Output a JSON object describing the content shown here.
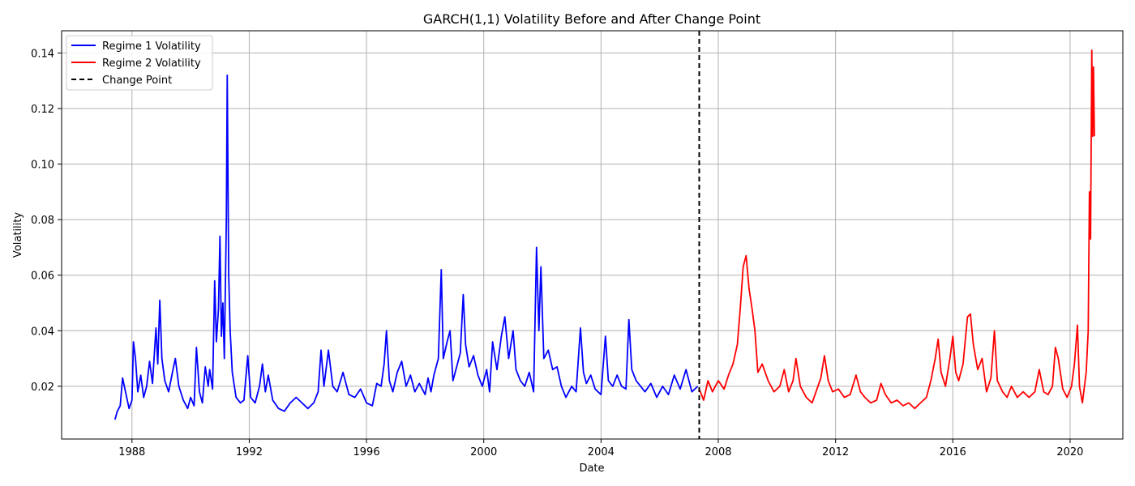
{
  "chart_data": {
    "type": "line",
    "title": "GARCH(1,1) Volatility Before and After Change Point",
    "xlabel": "Date",
    "ylabel": "Volatility",
    "x_ticks": [
      "1988",
      "1992",
      "1996",
      "2000",
      "2004",
      "2008",
      "2012",
      "2016",
      "2020"
    ],
    "y_ticks": [
      "0.02",
      "0.04",
      "0.06",
      "0.08",
      "0.10",
      "0.12",
      "0.14"
    ],
    "xlim": [
      1985.6,
      2021.8
    ],
    "ylim": [
      0.001,
      0.148
    ],
    "grid": true,
    "legend_position": "top-left",
    "change_point": {
      "name": "Change Point",
      "x": 2007.35,
      "color": "#000000",
      "style": "dashed"
    },
    "series": [
      {
        "name": "Regime 1 Volatility",
        "color": "#0000ff",
        "points": [
          [
            1987.42,
            0.008
          ],
          [
            1987.5,
            0.011
          ],
          [
            1987.6,
            0.013
          ],
          [
            1987.68,
            0.023
          ],
          [
            1987.78,
            0.018
          ],
          [
            1987.9,
            0.012
          ],
          [
            1988.0,
            0.015
          ],
          [
            1988.05,
            0.036
          ],
          [
            1988.12,
            0.03
          ],
          [
            1988.2,
            0.018
          ],
          [
            1988.3,
            0.024
          ],
          [
            1988.4,
            0.016
          ],
          [
            1988.5,
            0.02
          ],
          [
            1988.6,
            0.029
          ],
          [
            1988.7,
            0.021
          ],
          [
            1988.82,
            0.041
          ],
          [
            1988.88,
            0.028
          ],
          [
            1988.95,
            0.051
          ],
          [
            1989.02,
            0.03
          ],
          [
            1989.12,
            0.022
          ],
          [
            1989.25,
            0.018
          ],
          [
            1989.4,
            0.026
          ],
          [
            1989.48,
            0.03
          ],
          [
            1989.6,
            0.02
          ],
          [
            1989.75,
            0.015
          ],
          [
            1989.9,
            0.012
          ],
          [
            1990.0,
            0.016
          ],
          [
            1990.12,
            0.013
          ],
          [
            1990.2,
            0.034
          ],
          [
            1990.3,
            0.018
          ],
          [
            1990.4,
            0.014
          ],
          [
            1990.5,
            0.027
          ],
          [
            1990.6,
            0.02
          ],
          [
            1990.65,
            0.026
          ],
          [
            1990.75,
            0.019
          ],
          [
            1990.82,
            0.058
          ],
          [
            1990.88,
            0.036
          ],
          [
            1990.95,
            0.048
          ],
          [
            1991.0,
            0.074
          ],
          [
            1991.05,
            0.038
          ],
          [
            1991.1,
            0.05
          ],
          [
            1991.15,
            0.03
          ],
          [
            1991.22,
            0.08
          ],
          [
            1991.25,
            0.132
          ],
          [
            1991.3,
            0.06
          ],
          [
            1991.35,
            0.04
          ],
          [
            1991.42,
            0.025
          ],
          [
            1991.55,
            0.016
          ],
          [
            1991.7,
            0.014
          ],
          [
            1991.82,
            0.015
          ],
          [
            1991.95,
            0.031
          ],
          [
            1992.05,
            0.016
          ],
          [
            1992.2,
            0.014
          ],
          [
            1992.35,
            0.02
          ],
          [
            1992.45,
            0.028
          ],
          [
            1992.55,
            0.018
          ],
          [
            1992.65,
            0.024
          ],
          [
            1992.8,
            0.015
          ],
          [
            1993.0,
            0.012
          ],
          [
            1993.2,
            0.011
          ],
          [
            1993.4,
            0.014
          ],
          [
            1993.6,
            0.016
          ],
          [
            1993.8,
            0.014
          ],
          [
            1994.0,
            0.012
          ],
          [
            1994.2,
            0.014
          ],
          [
            1994.35,
            0.018
          ],
          [
            1994.45,
            0.033
          ],
          [
            1994.55,
            0.02
          ],
          [
            1994.7,
            0.033
          ],
          [
            1994.85,
            0.02
          ],
          [
            1995.0,
            0.018
          ],
          [
            1995.2,
            0.025
          ],
          [
            1995.4,
            0.017
          ],
          [
            1995.6,
            0.016
          ],
          [
            1995.8,
            0.019
          ],
          [
            1996.0,
            0.014
          ],
          [
            1996.2,
            0.013
          ],
          [
            1996.35,
            0.021
          ],
          [
            1996.5,
            0.02
          ],
          [
            1996.6,
            0.028
          ],
          [
            1996.68,
            0.04
          ],
          [
            1996.78,
            0.022
          ],
          [
            1996.9,
            0.018
          ],
          [
            1997.05,
            0.025
          ],
          [
            1997.2,
            0.029
          ],
          [
            1997.35,
            0.02
          ],
          [
            1997.5,
            0.024
          ],
          [
            1997.65,
            0.018
          ],
          [
            1997.8,
            0.021
          ],
          [
            1998.0,
            0.017
          ],
          [
            1998.1,
            0.023
          ],
          [
            1998.2,
            0.018
          ],
          [
            1998.3,
            0.024
          ],
          [
            1998.45,
            0.03
          ],
          [
            1998.55,
            0.062
          ],
          [
            1998.62,
            0.03
          ],
          [
            1998.75,
            0.036
          ],
          [
            1998.85,
            0.04
          ],
          [
            1998.95,
            0.022
          ],
          [
            1999.1,
            0.028
          ],
          [
            1999.2,
            0.032
          ],
          [
            1999.3,
            0.053
          ],
          [
            1999.38,
            0.035
          ],
          [
            1999.5,
            0.027
          ],
          [
            1999.65,
            0.031
          ],
          [
            1999.8,
            0.024
          ],
          [
            1999.95,
            0.02
          ],
          [
            2000.1,
            0.026
          ],
          [
            2000.2,
            0.018
          ],
          [
            2000.3,
            0.036
          ],
          [
            2000.45,
            0.026
          ],
          [
            2000.6,
            0.038
          ],
          [
            2000.72,
            0.045
          ],
          [
            2000.85,
            0.03
          ],
          [
            2001.0,
            0.04
          ],
          [
            2001.1,
            0.026
          ],
          [
            2001.25,
            0.022
          ],
          [
            2001.4,
            0.02
          ],
          [
            2001.55,
            0.025
          ],
          [
            2001.7,
            0.018
          ],
          [
            2001.8,
            0.07
          ],
          [
            2001.88,
            0.04
          ],
          [
            2001.95,
            0.063
          ],
          [
            2002.05,
            0.03
          ],
          [
            2002.2,
            0.033
          ],
          [
            2002.35,
            0.026
          ],
          [
            2002.5,
            0.027
          ],
          [
            2002.65,
            0.02
          ],
          [
            2002.8,
            0.016
          ],
          [
            2003.0,
            0.02
          ],
          [
            2003.15,
            0.018
          ],
          [
            2003.3,
            0.041
          ],
          [
            2003.4,
            0.025
          ],
          [
            2003.5,
            0.021
          ],
          [
            2003.65,
            0.024
          ],
          [
            2003.8,
            0.019
          ],
          [
            2004.0,
            0.017
          ],
          [
            2004.15,
            0.038
          ],
          [
            2004.25,
            0.022
          ],
          [
            2004.4,
            0.02
          ],
          [
            2004.55,
            0.024
          ],
          [
            2004.7,
            0.02
          ],
          [
            2004.85,
            0.019
          ],
          [
            2004.95,
            0.044
          ],
          [
            2005.05,
            0.026
          ],
          [
            2005.2,
            0.022
          ],
          [
            2005.35,
            0.02
          ],
          [
            2005.5,
            0.018
          ],
          [
            2005.7,
            0.021
          ],
          [
            2005.9,
            0.016
          ],
          [
            2006.1,
            0.02
          ],
          [
            2006.3,
            0.017
          ],
          [
            2006.5,
            0.024
          ],
          [
            2006.7,
            0.019
          ],
          [
            2006.9,
            0.026
          ],
          [
            2007.1,
            0.018
          ],
          [
            2007.3,
            0.02
          ]
        ]
      },
      {
        "name": "Regime 2 Volatility",
        "color": "#ff0000",
        "points": [
          [
            2007.35,
            0.019
          ],
          [
            2007.5,
            0.015
          ],
          [
            2007.65,
            0.022
          ],
          [
            2007.8,
            0.018
          ],
          [
            2008.0,
            0.022
          ],
          [
            2008.2,
            0.019
          ],
          [
            2008.35,
            0.024
          ],
          [
            2008.5,
            0.028
          ],
          [
            2008.65,
            0.035
          ],
          [
            2008.75,
            0.048
          ],
          [
            2008.85,
            0.063
          ],
          [
            2008.95,
            0.067
          ],
          [
            2009.05,
            0.055
          ],
          [
            2009.15,
            0.048
          ],
          [
            2009.25,
            0.04
          ],
          [
            2009.35,
            0.025
          ],
          [
            2009.5,
            0.028
          ],
          [
            2009.7,
            0.022
          ],
          [
            2009.9,
            0.018
          ],
          [
            2010.1,
            0.02
          ],
          [
            2010.25,
            0.026
          ],
          [
            2010.4,
            0.018
          ],
          [
            2010.55,
            0.022
          ],
          [
            2010.65,
            0.03
          ],
          [
            2010.8,
            0.02
          ],
          [
            2011.0,
            0.016
          ],
          [
            2011.2,
            0.014
          ],
          [
            2011.4,
            0.02
          ],
          [
            2011.5,
            0.023
          ],
          [
            2011.62,
            0.031
          ],
          [
            2011.75,
            0.022
          ],
          [
            2011.9,
            0.018
          ],
          [
            2012.1,
            0.019
          ],
          [
            2012.3,
            0.016
          ],
          [
            2012.5,
            0.017
          ],
          [
            2012.7,
            0.024
          ],
          [
            2012.85,
            0.018
          ],
          [
            2013.0,
            0.016
          ],
          [
            2013.2,
            0.014
          ],
          [
            2013.4,
            0.015
          ],
          [
            2013.55,
            0.021
          ],
          [
            2013.7,
            0.017
          ],
          [
            2013.9,
            0.014
          ],
          [
            2014.1,
            0.015
          ],
          [
            2014.3,
            0.013
          ],
          [
            2014.5,
            0.014
          ],
          [
            2014.7,
            0.012
          ],
          [
            2014.9,
            0.014
          ],
          [
            2015.1,
            0.016
          ],
          [
            2015.25,
            0.022
          ],
          [
            2015.4,
            0.03
          ],
          [
            2015.5,
            0.037
          ],
          [
            2015.6,
            0.025
          ],
          [
            2015.75,
            0.02
          ],
          [
            2015.9,
            0.03
          ],
          [
            2016.0,
            0.038
          ],
          [
            2016.1,
            0.025
          ],
          [
            2016.2,
            0.022
          ],
          [
            2016.35,
            0.028
          ],
          [
            2016.5,
            0.045
          ],
          [
            2016.6,
            0.046
          ],
          [
            2016.7,
            0.035
          ],
          [
            2016.85,
            0.026
          ],
          [
            2017.0,
            0.03
          ],
          [
            2017.15,
            0.018
          ],
          [
            2017.3,
            0.023
          ],
          [
            2017.42,
            0.04
          ],
          [
            2017.52,
            0.022
          ],
          [
            2017.7,
            0.018
          ],
          [
            2017.85,
            0.016
          ],
          [
            2018.0,
            0.02
          ],
          [
            2018.2,
            0.016
          ],
          [
            2018.4,
            0.018
          ],
          [
            2018.6,
            0.016
          ],
          [
            2018.8,
            0.018
          ],
          [
            2018.95,
            0.026
          ],
          [
            2019.1,
            0.018
          ],
          [
            2019.25,
            0.017
          ],
          [
            2019.4,
            0.02
          ],
          [
            2019.5,
            0.034
          ],
          [
            2019.6,
            0.03
          ],
          [
            2019.75,
            0.019
          ],
          [
            2019.9,
            0.016
          ],
          [
            2020.05,
            0.02
          ],
          [
            2020.15,
            0.028
          ],
          [
            2020.25,
            0.042
          ],
          [
            2020.32,
            0.02
          ],
          [
            2020.42,
            0.014
          ],
          [
            2020.55,
            0.025
          ],
          [
            2020.62,
            0.04
          ],
          [
            2020.66,
            0.09
          ],
          [
            2020.7,
            0.073
          ],
          [
            2020.74,
            0.141
          ],
          [
            2020.77,
            0.11
          ],
          [
            2020.8,
            0.135
          ],
          [
            2020.83,
            0.11
          ]
        ]
      }
    ]
  }
}
